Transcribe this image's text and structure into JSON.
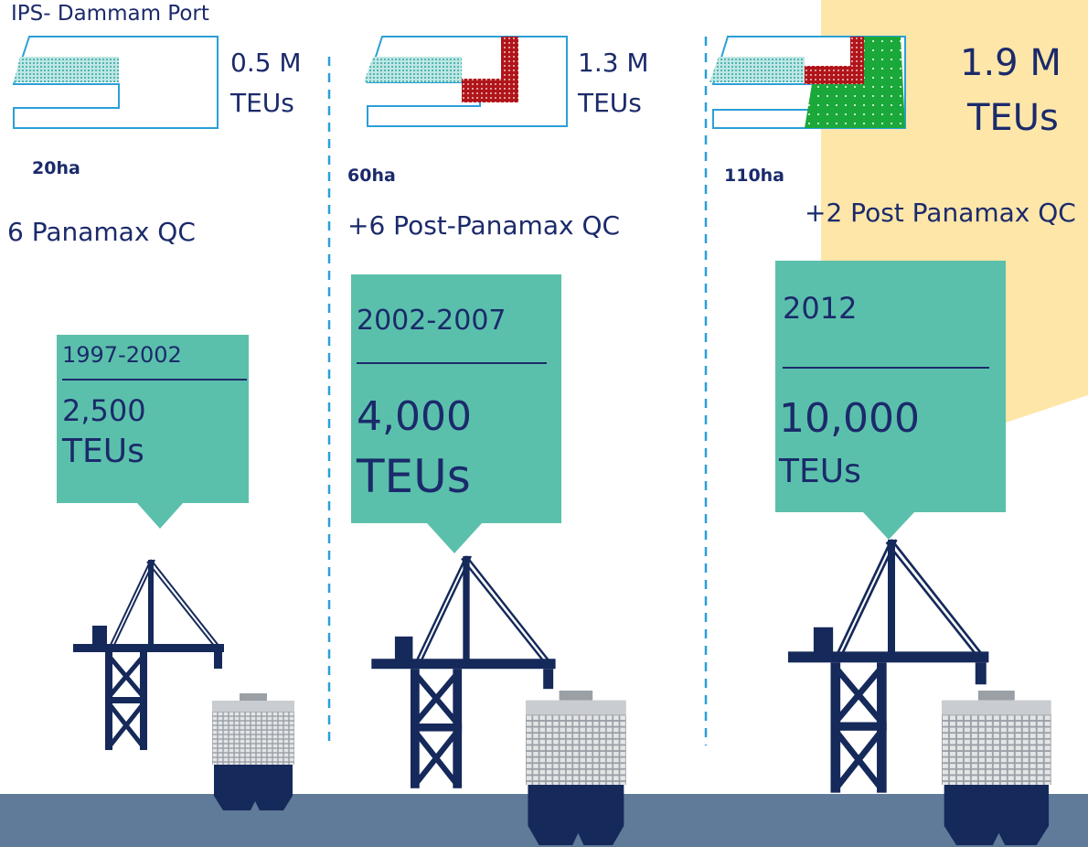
{
  "title": "IPS- Dammam Port",
  "phases": [
    {
      "capacity": "0.5 M",
      "capacity_unit": "TEUs",
      "area": "20ha",
      "cranes": "6 Panamax QC",
      "period": "1997-2002",
      "vessel_size": "2,500",
      "vessel_unit": "TEUs"
    },
    {
      "capacity": "1.3 M",
      "capacity_unit": "TEUs",
      "area": "60ha",
      "cranes": "+6 Post-Panamax QC",
      "period": "2002-2007",
      "vessel_size": "4,000",
      "vessel_unit": "TEUs"
    },
    {
      "capacity": "1.9 M",
      "capacity_unit": "TEUs",
      "area": "110ha",
      "cranes": "+2 Post Panamax QC",
      "period": "2012",
      "vessel_size": "10,000",
      "vessel_unit": "TEUs"
    }
  ]
}
